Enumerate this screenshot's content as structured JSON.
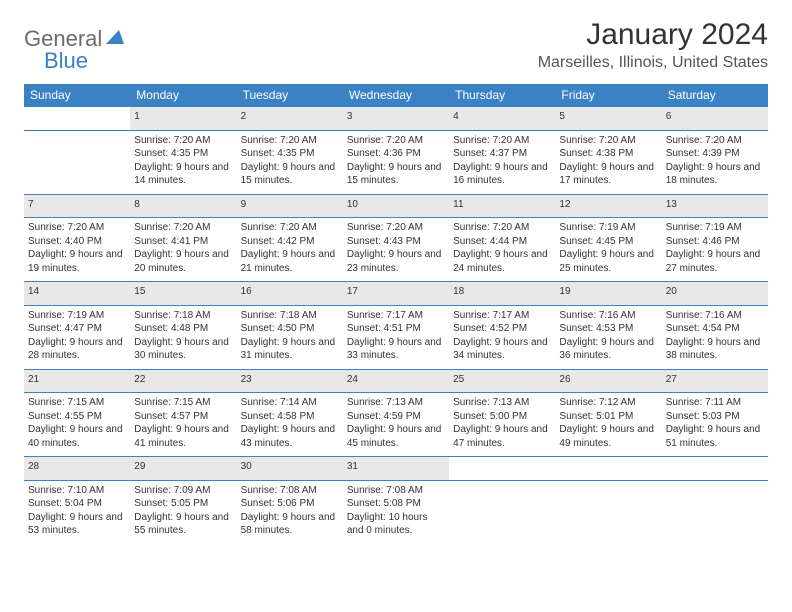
{
  "logo": {
    "word1": "General",
    "word2": "Blue"
  },
  "title": "January 2024",
  "location": "Marseilles, Illinois, United States",
  "colors": {
    "header_bg": "#3b82c4",
    "header_text": "#ffffff",
    "daynum_bg": "#e8e8e8",
    "border": "#3b82c4",
    "logo_gray": "#6b6b6b",
    "logo_blue": "#3b82c4"
  },
  "typography": {
    "title_fontsize": 30,
    "location_fontsize": 16,
    "header_fontsize": 12,
    "daynum_fontsize": 11,
    "cell_fontsize": 10
  },
  "day_headers": [
    "Sunday",
    "Monday",
    "Tuesday",
    "Wednesday",
    "Thursday",
    "Friday",
    "Saturday"
  ],
  "weeks": [
    {
      "nums": [
        "",
        "1",
        "2",
        "3",
        "4",
        "5",
        "6"
      ],
      "cells": [
        {
          "sunrise": "",
          "sunset": "",
          "daylight": ""
        },
        {
          "sunrise": "Sunrise: 7:20 AM",
          "sunset": "Sunset: 4:35 PM",
          "daylight": "Daylight: 9 hours and 14 minutes."
        },
        {
          "sunrise": "Sunrise: 7:20 AM",
          "sunset": "Sunset: 4:35 PM",
          "daylight": "Daylight: 9 hours and 15 minutes."
        },
        {
          "sunrise": "Sunrise: 7:20 AM",
          "sunset": "Sunset: 4:36 PM",
          "daylight": "Daylight: 9 hours and 15 minutes."
        },
        {
          "sunrise": "Sunrise: 7:20 AM",
          "sunset": "Sunset: 4:37 PM",
          "daylight": "Daylight: 9 hours and 16 minutes."
        },
        {
          "sunrise": "Sunrise: 7:20 AM",
          "sunset": "Sunset: 4:38 PM",
          "daylight": "Daylight: 9 hours and 17 minutes."
        },
        {
          "sunrise": "Sunrise: 7:20 AM",
          "sunset": "Sunset: 4:39 PM",
          "daylight": "Daylight: 9 hours and 18 minutes."
        }
      ]
    },
    {
      "nums": [
        "7",
        "8",
        "9",
        "10",
        "11",
        "12",
        "13"
      ],
      "cells": [
        {
          "sunrise": "Sunrise: 7:20 AM",
          "sunset": "Sunset: 4:40 PM",
          "daylight": "Daylight: 9 hours and 19 minutes."
        },
        {
          "sunrise": "Sunrise: 7:20 AM",
          "sunset": "Sunset: 4:41 PM",
          "daylight": "Daylight: 9 hours and 20 minutes."
        },
        {
          "sunrise": "Sunrise: 7:20 AM",
          "sunset": "Sunset: 4:42 PM",
          "daylight": "Daylight: 9 hours and 21 minutes."
        },
        {
          "sunrise": "Sunrise: 7:20 AM",
          "sunset": "Sunset: 4:43 PM",
          "daylight": "Daylight: 9 hours and 23 minutes."
        },
        {
          "sunrise": "Sunrise: 7:20 AM",
          "sunset": "Sunset: 4:44 PM",
          "daylight": "Daylight: 9 hours and 24 minutes."
        },
        {
          "sunrise": "Sunrise: 7:19 AM",
          "sunset": "Sunset: 4:45 PM",
          "daylight": "Daylight: 9 hours and 25 minutes."
        },
        {
          "sunrise": "Sunrise: 7:19 AM",
          "sunset": "Sunset: 4:46 PM",
          "daylight": "Daylight: 9 hours and 27 minutes."
        }
      ]
    },
    {
      "nums": [
        "14",
        "15",
        "16",
        "17",
        "18",
        "19",
        "20"
      ],
      "cells": [
        {
          "sunrise": "Sunrise: 7:19 AM",
          "sunset": "Sunset: 4:47 PM",
          "daylight": "Daylight: 9 hours and 28 minutes."
        },
        {
          "sunrise": "Sunrise: 7:18 AM",
          "sunset": "Sunset: 4:48 PM",
          "daylight": "Daylight: 9 hours and 30 minutes."
        },
        {
          "sunrise": "Sunrise: 7:18 AM",
          "sunset": "Sunset: 4:50 PM",
          "daylight": "Daylight: 9 hours and 31 minutes."
        },
        {
          "sunrise": "Sunrise: 7:17 AM",
          "sunset": "Sunset: 4:51 PM",
          "daylight": "Daylight: 9 hours and 33 minutes."
        },
        {
          "sunrise": "Sunrise: 7:17 AM",
          "sunset": "Sunset: 4:52 PM",
          "daylight": "Daylight: 9 hours and 34 minutes."
        },
        {
          "sunrise": "Sunrise: 7:16 AM",
          "sunset": "Sunset: 4:53 PM",
          "daylight": "Daylight: 9 hours and 36 minutes."
        },
        {
          "sunrise": "Sunrise: 7:16 AM",
          "sunset": "Sunset: 4:54 PM",
          "daylight": "Daylight: 9 hours and 38 minutes."
        }
      ]
    },
    {
      "nums": [
        "21",
        "22",
        "23",
        "24",
        "25",
        "26",
        "27"
      ],
      "cells": [
        {
          "sunrise": "Sunrise: 7:15 AM",
          "sunset": "Sunset: 4:55 PM",
          "daylight": "Daylight: 9 hours and 40 minutes."
        },
        {
          "sunrise": "Sunrise: 7:15 AM",
          "sunset": "Sunset: 4:57 PM",
          "daylight": "Daylight: 9 hours and 41 minutes."
        },
        {
          "sunrise": "Sunrise: 7:14 AM",
          "sunset": "Sunset: 4:58 PM",
          "daylight": "Daylight: 9 hours and 43 minutes."
        },
        {
          "sunrise": "Sunrise: 7:13 AM",
          "sunset": "Sunset: 4:59 PM",
          "daylight": "Daylight: 9 hours and 45 minutes."
        },
        {
          "sunrise": "Sunrise: 7:13 AM",
          "sunset": "Sunset: 5:00 PM",
          "daylight": "Daylight: 9 hours and 47 minutes."
        },
        {
          "sunrise": "Sunrise: 7:12 AM",
          "sunset": "Sunset: 5:01 PM",
          "daylight": "Daylight: 9 hours and 49 minutes."
        },
        {
          "sunrise": "Sunrise: 7:11 AM",
          "sunset": "Sunset: 5:03 PM",
          "daylight": "Daylight: 9 hours and 51 minutes."
        }
      ]
    },
    {
      "nums": [
        "28",
        "29",
        "30",
        "31",
        "",
        "",
        ""
      ],
      "cells": [
        {
          "sunrise": "Sunrise: 7:10 AM",
          "sunset": "Sunset: 5:04 PM",
          "daylight": "Daylight: 9 hours and 53 minutes."
        },
        {
          "sunrise": "Sunrise: 7:09 AM",
          "sunset": "Sunset: 5:05 PM",
          "daylight": "Daylight: 9 hours and 55 minutes."
        },
        {
          "sunrise": "Sunrise: 7:08 AM",
          "sunset": "Sunset: 5:06 PM",
          "daylight": "Daylight: 9 hours and 58 minutes."
        },
        {
          "sunrise": "Sunrise: 7:08 AM",
          "sunset": "Sunset: 5:08 PM",
          "daylight": "Daylight: 10 hours and 0 minutes."
        },
        {
          "sunrise": "",
          "sunset": "",
          "daylight": ""
        },
        {
          "sunrise": "",
          "sunset": "",
          "daylight": ""
        },
        {
          "sunrise": "",
          "sunset": "",
          "daylight": ""
        }
      ]
    }
  ]
}
